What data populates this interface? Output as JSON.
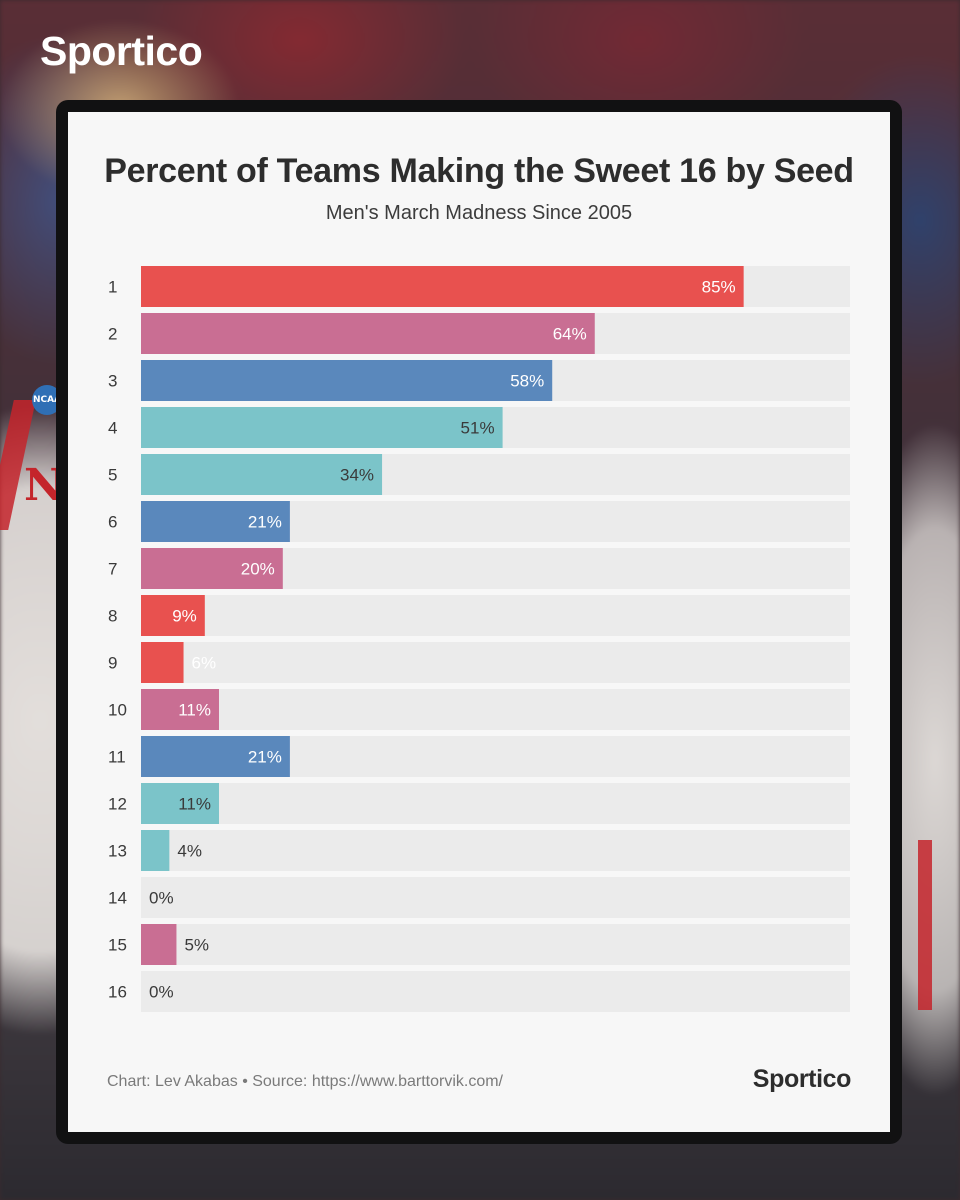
{
  "brand": {
    "name": "Sportico"
  },
  "background": {
    "jersey_letter": "N",
    "badge_text": "NCAA"
  },
  "colors": {
    "red": "#e8514f",
    "pink": "#c96e93",
    "blue": "#5a88bc",
    "teal": "#7bc4c9",
    "track": "#ebebeb",
    "label_dark": "#3a3a3a",
    "label_light": "#ffffff"
  },
  "chart_data": {
    "type": "bar",
    "orientation": "horizontal",
    "title": "Percent of Teams Making the Sweet 16 by Seed",
    "subtitle": "Men's March Madness Since 2005",
    "xlabel": "",
    "ylabel": "",
    "xlim": [
      0,
      100
    ],
    "categories": [
      "1",
      "2",
      "3",
      "4",
      "5",
      "6",
      "7",
      "8",
      "9",
      "10",
      "11",
      "12",
      "13",
      "14",
      "15",
      "16"
    ],
    "values": [
      85,
      64,
      58,
      51,
      34,
      21,
      20,
      9,
      6,
      11,
      21,
      11,
      4,
      0,
      5,
      0
    ],
    "value_labels": [
      "85%",
      "64%",
      "58%",
      "51%",
      "34%",
      "21%",
      "20%",
      "9%",
      "6%",
      "11%",
      "21%",
      "11%",
      "4%",
      "0%",
      "5%",
      "0%"
    ],
    "bar_colors": [
      "red",
      "pink",
      "blue",
      "teal",
      "teal",
      "blue",
      "pink",
      "red",
      "red",
      "pink",
      "blue",
      "teal",
      "teal",
      "teal",
      "pink",
      "pink"
    ],
    "label_tones": [
      "light",
      "light",
      "light",
      "dark",
      "dark",
      "light",
      "light",
      "light",
      "light",
      "light",
      "light",
      "dark",
      "dark",
      "dark",
      "dark",
      "dark"
    ],
    "grid": false,
    "legend": "none"
  },
  "footer": {
    "source": "Chart: Lev Akabas • Source: https://www.barttorvik.com/",
    "logo": "Sportico"
  }
}
